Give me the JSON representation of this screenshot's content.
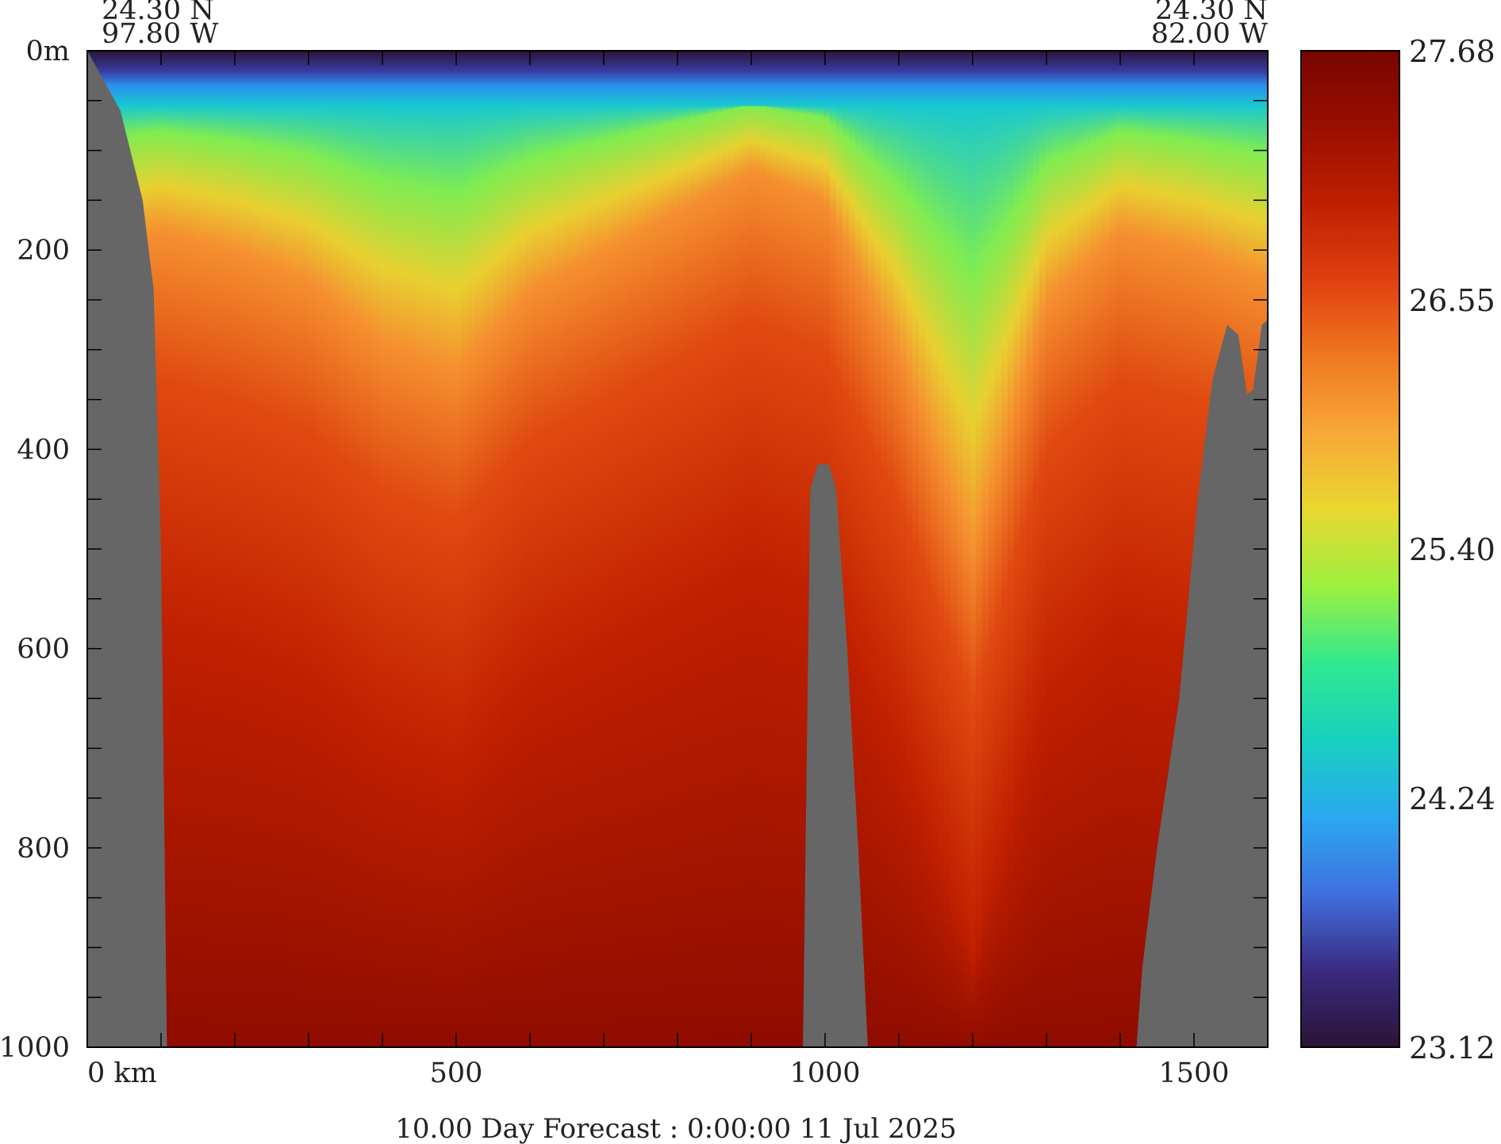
{
  "chart_data": {
    "type": "heatmap",
    "title": "",
    "caption": "10.00 Day Forecast :   0:00:00  11 Jul 2025",
    "start_point": {
      "lat": "24.30 N",
      "lon": "97.80 W"
    },
    "end_point": {
      "lat": "24.30 N",
      "lon": "82.00 W"
    },
    "xlabel": "km",
    "ylabel": "m",
    "x_range": [
      0,
      1600
    ],
    "y_range": [
      0,
      1000
    ],
    "x_ticks": [
      {
        "value": 0,
        "label": "0 km"
      },
      {
        "value": 500,
        "label": "500"
      },
      {
        "value": 1000,
        "label": "1000"
      },
      {
        "value": 1500,
        "label": "1500"
      }
    ],
    "y_ticks": [
      {
        "value": 0,
        "label": "0m"
      },
      {
        "value": 200,
        "label": "200"
      },
      {
        "value": 400,
        "label": "400"
      },
      {
        "value": 600,
        "label": "600"
      },
      {
        "value": 800,
        "label": "800"
      },
      {
        "value": 1000,
        "label": "1000"
      }
    ],
    "colorbar": {
      "min": 23.12,
      "max": 27.68,
      "labels": [
        "27.68",
        "26.55",
        "25.40",
        "24.24",
        "23.12"
      ],
      "colors": [
        "#2a1438",
        "#3a2a80",
        "#4070e0",
        "#2aa8f0",
        "#18d0c0",
        "#30e890",
        "#9cf040",
        "#e8d830",
        "#f8a838",
        "#f07820",
        "#e04010",
        "#c02000",
        "#9a0e00",
        "#780600"
      ]
    },
    "surface_band_depth": [
      {
        "x": 0,
        "warm_depth": 200
      },
      {
        "x": 100,
        "warm_depth": 180
      },
      {
        "x": 200,
        "warm_depth": 200
      },
      {
        "x": 300,
        "warm_depth": 230
      },
      {
        "x": 400,
        "warm_depth": 290
      },
      {
        "x": 500,
        "warm_depth": 320
      },
      {
        "x": 600,
        "warm_depth": 240
      },
      {
        "x": 700,
        "warm_depth": 200
      },
      {
        "x": 800,
        "warm_depth": 160
      },
      {
        "x": 900,
        "warm_depth": 120
      },
      {
        "x": 1000,
        "warm_depth": 150
      },
      {
        "x": 1100,
        "warm_depth": 300
      },
      {
        "x": 1200,
        "warm_depth": 500
      },
      {
        "x": 1300,
        "warm_depth": 250
      },
      {
        "x": 1400,
        "warm_depth": 180
      },
      {
        "x": 1500,
        "warm_depth": 200
      },
      {
        "x": 1600,
        "warm_depth": 230
      }
    ],
    "bathymetry": [
      {
        "x": 0,
        "depth": 0
      },
      {
        "x": 45,
        "depth": 60
      },
      {
        "x": 75,
        "depth": 150
      },
      {
        "x": 90,
        "depth": 240
      },
      {
        "x": 100,
        "depth": 500
      },
      {
        "x": 108,
        "depth": 1000
      },
      {
        "x": 970,
        "depth": 1000
      },
      {
        "x": 980,
        "depth": 440
      },
      {
        "x": 990,
        "depth": 415
      },
      {
        "x": 1005,
        "depth": 415
      },
      {
        "x": 1015,
        "depth": 440
      },
      {
        "x": 1030,
        "depth": 600
      },
      {
        "x": 1045,
        "depth": 800
      },
      {
        "x": 1058,
        "depth": 1000
      },
      {
        "x": 1422,
        "depth": 1000
      },
      {
        "x": 1430,
        "depth": 920
      },
      {
        "x": 1450,
        "depth": 800
      },
      {
        "x": 1480,
        "depth": 650
      },
      {
        "x": 1505,
        "depth": 450
      },
      {
        "x": 1525,
        "depth": 330
      },
      {
        "x": 1545,
        "depth": 275
      },
      {
        "x": 1560,
        "depth": 285
      },
      {
        "x": 1572,
        "depth": 345
      },
      {
        "x": 1580,
        "depth": 340
      },
      {
        "x": 1592,
        "depth": 275
      },
      {
        "x": 1600,
        "depth": 270
      }
    ]
  }
}
